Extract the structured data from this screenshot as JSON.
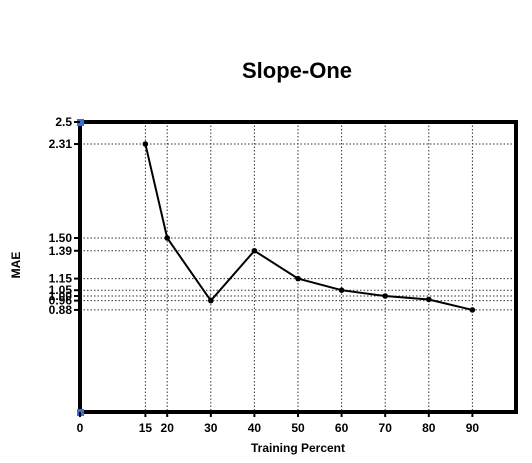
{
  "chart_data": {
    "type": "line",
    "title": "Slope-One",
    "xlabel": "Training Percent",
    "ylabel": "MAE",
    "xlim": [
      0,
      100
    ],
    "ylim": [
      0,
      2.5
    ],
    "x_ticks": [
      0,
      15,
      20,
      30,
      40,
      50,
      60,
      70,
      80,
      90
    ],
    "x_tick_labels": [
      "0",
      "15",
      "20",
      "30",
      "40",
      "50",
      "60",
      "70",
      "80",
      "90"
    ],
    "y_ticks": [
      0.88,
      0.96,
      1.0,
      1.05,
      1.15,
      1.39,
      1.5,
      2.31,
      2.5
    ],
    "y_tick_labels": [
      "0.88",
      "0.96",
      "1.00",
      "1.05",
      "1.15",
      "1.39",
      "1.50",
      "2.31",
      "2.5"
    ],
    "grid": true,
    "x": [
      15,
      20,
      30,
      40,
      50,
      60,
      70,
      80,
      90
    ],
    "series": [
      {
        "values": [
          2.31,
          1.5,
          0.96,
          1.39,
          1.15,
          1.05,
          1.0,
          0.97,
          0.88
        ]
      }
    ]
  }
}
